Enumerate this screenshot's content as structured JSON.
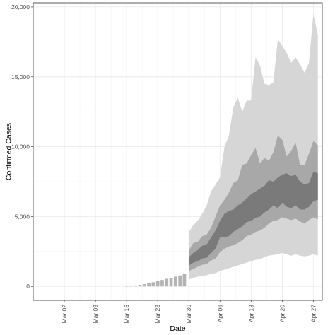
{
  "chart_data": {
    "type": "area",
    "xlabel": "Date",
    "ylabel": "Confirmed Cases",
    "x_date_range": [
      "2020-02-24",
      "2020-04-29"
    ],
    "ylim": [
      -1000,
      20300
    ],
    "y_ticks": [
      0,
      5000,
      10000,
      15000,
      20000
    ],
    "y_tick_labels": [
      "0",
      "5,000",
      "10,000",
      "15,000",
      "20,000"
    ],
    "x_ticks": [
      "2020-03-02",
      "2020-03-09",
      "2020-03-16",
      "2020-03-23",
      "2020-03-30",
      "2020-04-06",
      "2020-04-13",
      "2020-04-20",
      "2020-04-27"
    ],
    "x_tick_labels": [
      "Mar 02",
      "Mar 09",
      "Mar 16",
      "Mar 23",
      "Mar 30",
      "Apr 06",
      "Apr 13",
      "Apr 20",
      "Apr 27"
    ],
    "grid": true,
    "colors": {
      "observed": "#b3b3b3",
      "band_outer": "#d6d6d6",
      "band_middle": "#a8a8a8",
      "band_inner": "#7a7a7a"
    },
    "observed": {
      "dates": [
        "2020-03-16",
        "2020-03-17",
        "2020-03-18",
        "2020-03-19",
        "2020-03-20",
        "2020-03-21",
        "2020-03-22",
        "2020-03-23",
        "2020-03-24",
        "2020-03-25",
        "2020-03-26",
        "2020-03-27",
        "2020-03-28",
        "2020-03-29"
      ],
      "values": [
        20,
        40,
        70,
        110,
        160,
        220,
        300,
        380,
        460,
        540,
        620,
        700,
        780,
        900
      ]
    },
    "bands": {
      "dates": [
        "2020-03-30",
        "2020-03-31",
        "2020-04-01",
        "2020-04-02",
        "2020-04-03",
        "2020-04-04",
        "2020-04-05",
        "2020-04-06",
        "2020-04-07",
        "2020-04-08",
        "2020-04-09",
        "2020-04-10",
        "2020-04-11",
        "2020-04-12",
        "2020-04-13",
        "2020-04-14",
        "2020-04-15",
        "2020-04-16",
        "2020-04-17",
        "2020-04-18",
        "2020-04-19",
        "2020-04-20",
        "2020-04-21",
        "2020-04-22",
        "2020-04-23",
        "2020-04-24",
        "2020-04-25",
        "2020-04-26",
        "2020-04-27",
        "2020-04-28"
      ],
      "outer_low": [
        500,
        600,
        700,
        750,
        800,
        900,
        950,
        1100,
        1200,
        1300,
        1400,
        1500,
        1600,
        1700,
        1800,
        1900,
        1950,
        2100,
        2200,
        2250,
        2300,
        2400,
        2300,
        2200,
        2300,
        2200,
        2150,
        2200,
        2300,
        2200
      ],
      "middle_low": [
        1100,
        1250,
        1400,
        1550,
        1600,
        1850,
        2000,
        2450,
        2700,
        2850,
        2950,
        3100,
        3300,
        3600,
        3700,
        3900,
        4000,
        4200,
        4500,
        4700,
        4750,
        4950,
        4850,
        4750,
        4850,
        4650,
        4500,
        4750,
        4950,
        4800
      ],
      "inner_low": [
        1500,
        1700,
        1800,
        2000,
        2050,
        2400,
        2700,
        3500,
        3500,
        3600,
        3900,
        4100,
        4300,
        4600,
        4700,
        4900,
        5000,
        5300,
        5500,
        5800,
        5600,
        6000,
        5700,
        5600,
        5800,
        5500,
        5500,
        5700,
        6100,
        6200
      ],
      "inner_high": [
        2100,
        2400,
        2600,
        2900,
        3000,
        3500,
        4000,
        4700,
        5200,
        5400,
        5500,
        5800,
        6000,
        6300,
        6600,
        6800,
        7000,
        7200,
        7600,
        7500,
        7800,
        8000,
        8100,
        7900,
        8000,
        7500,
        7300,
        7400,
        8200,
        8100
      ],
      "middle_high": [
        2600,
        3100,
        3200,
        3600,
        3700,
        4200,
        5000,
        5800,
        6200,
        6700,
        7400,
        7600,
        8700,
        8800,
        9400,
        9900,
        8800,
        9200,
        9000,
        9600,
        10800,
        10500,
        9300,
        9700,
        10300,
        8700,
        8700,
        9500,
        10400,
        10100
      ],
      "outer_high": [
        3900,
        4400,
        4700,
        5200,
        5800,
        6800,
        7300,
        7800,
        10000,
        10800,
        12800,
        13500,
        12500,
        13300,
        13300,
        16400,
        15800,
        14500,
        14400,
        14600,
        17700,
        17200,
        16700,
        16000,
        16400,
        15900,
        15300,
        16000,
        19500,
        18000
      ]
    }
  }
}
